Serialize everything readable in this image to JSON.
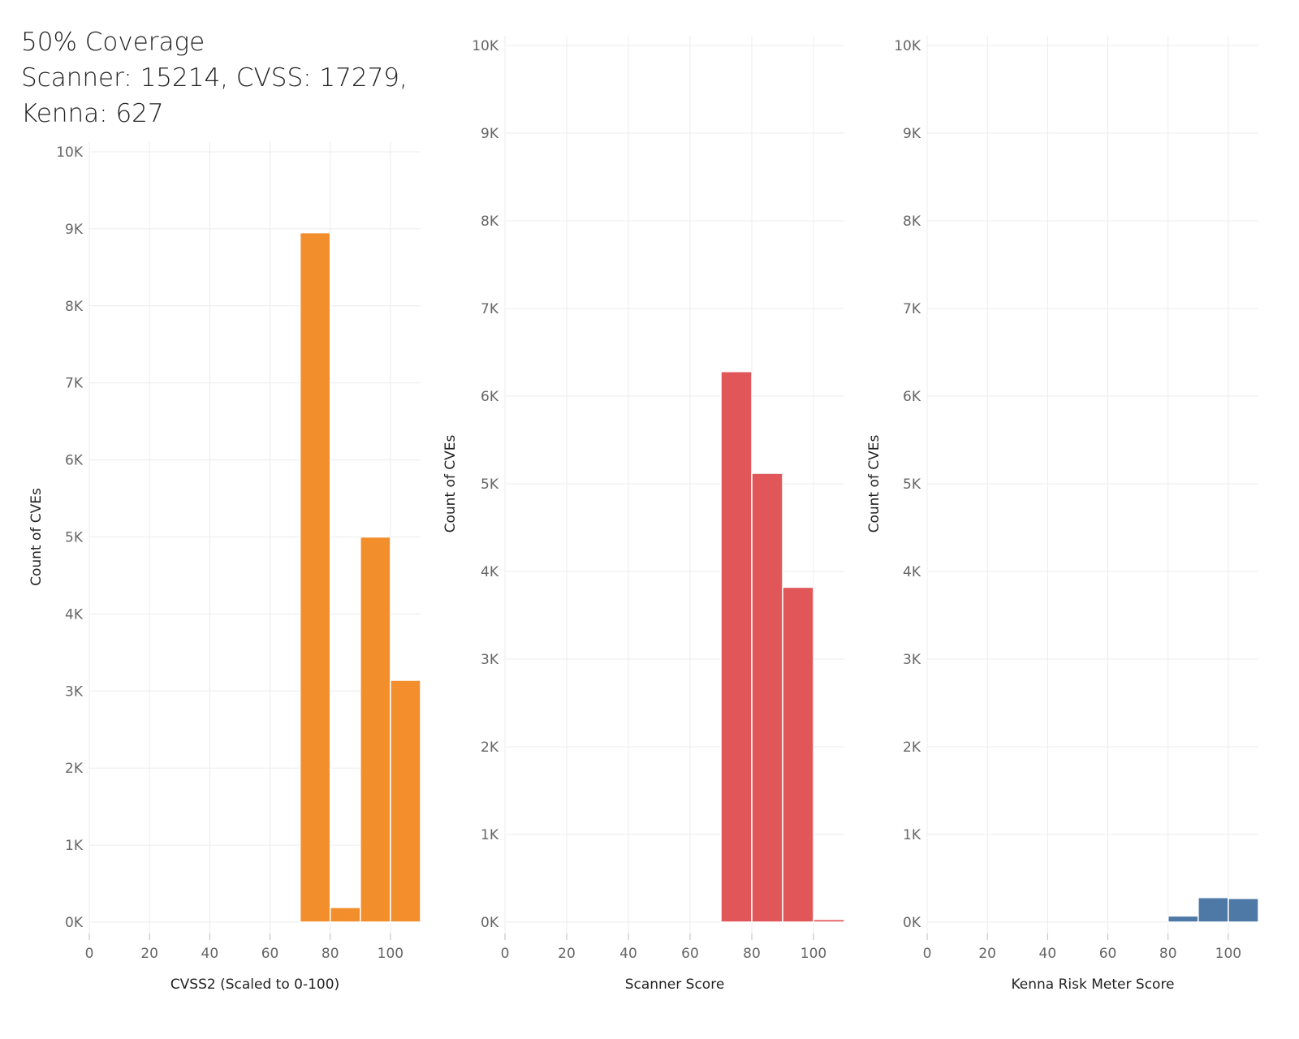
{
  "title": {
    "line1": "50% Coverage",
    "line2": "Scanner: 15214, CVSS: 17279,",
    "line3": "Kenna: 627"
  },
  "chart_data": [
    {
      "type": "bar",
      "name": "cvss",
      "xlabel": "CVSS2 (Scaled to 0-100)",
      "ylabel": "Count of CVEs",
      "color": "#F28E2B",
      "xlim": [
        0,
        110
      ],
      "ylim": [
        0,
        10000
      ],
      "x_ticks": [
        "0",
        "20",
        "40",
        "60",
        "80",
        "100"
      ],
      "x_tick_values": [
        0,
        20,
        40,
        60,
        80,
        100
      ],
      "y_ticks": [
        "0K",
        "1K",
        "2K",
        "3K",
        "4K",
        "5K",
        "6K",
        "7K",
        "8K",
        "9K",
        "10K"
      ],
      "bins": [
        {
          "start": 70,
          "end": 80,
          "value": 8950
        },
        {
          "start": 80,
          "end": 90,
          "value": 190
        },
        {
          "start": 90,
          "end": 100,
          "value": 5000
        },
        {
          "start": 100,
          "end": 110,
          "value": 3140
        }
      ]
    },
    {
      "type": "bar",
      "name": "scanner",
      "xlabel": "Scanner Score",
      "ylabel": "Count of CVEs",
      "color": "#E15759",
      "xlim": [
        0,
        110
      ],
      "ylim": [
        0,
        10000
      ],
      "x_ticks": [
        "0",
        "20",
        "40",
        "60",
        "80",
        "100"
      ],
      "x_tick_values": [
        0,
        20,
        40,
        60,
        80,
        100
      ],
      "y_ticks": [
        "0K",
        "1K",
        "2K",
        "3K",
        "4K",
        "5K",
        "6K",
        "7K",
        "8K",
        "9K",
        "10K"
      ],
      "bins": [
        {
          "start": 70,
          "end": 80,
          "value": 6280
        },
        {
          "start": 80,
          "end": 90,
          "value": 5120
        },
        {
          "start": 90,
          "end": 100,
          "value": 3820
        },
        {
          "start": 100,
          "end": 110,
          "value": 30
        }
      ]
    },
    {
      "type": "bar",
      "name": "kenna",
      "xlabel": "Kenna Risk Meter Score",
      "ylabel": "Count of CVEs",
      "color": "#4E79A7",
      "xlim": [
        0,
        110
      ],
      "ylim": [
        0,
        10000
      ],
      "x_ticks": [
        "0",
        "20",
        "40",
        "60",
        "80",
        "100"
      ],
      "x_tick_values": [
        0,
        20,
        40,
        60,
        80,
        100
      ],
      "y_ticks": [
        "0K",
        "1K",
        "2K",
        "3K",
        "4K",
        "5K",
        "6K",
        "7K",
        "8K",
        "9K",
        "10K"
      ],
      "bins": [
        {
          "start": 80,
          "end": 90,
          "value": 70
        },
        {
          "start": 90,
          "end": 100,
          "value": 280
        },
        {
          "start": 100,
          "end": 110,
          "value": 270
        }
      ]
    }
  ]
}
